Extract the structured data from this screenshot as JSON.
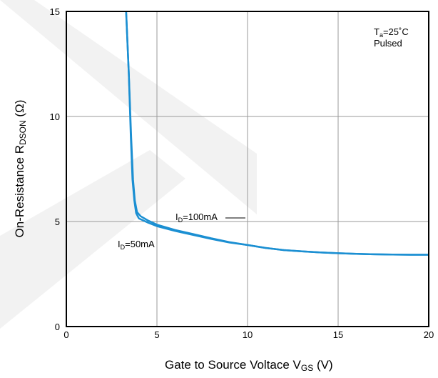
{
  "chart_data": {
    "type": "line",
    "xlim": [
      0,
      20
    ],
    "ylim": [
      0,
      15
    ],
    "x_ticks": [
      "0",
      "5",
      "10",
      "15",
      "20"
    ],
    "y_ticks": [
      "0",
      "5",
      "10",
      "15"
    ],
    "grid": true,
    "xlabel": {
      "main": "Gate  to  Source Voltace  V",
      "sub": "GS",
      "unit": " (V)"
    },
    "ylabel": {
      "main": "On-Resistance R",
      "sub": "DSON",
      "unit": " (Ω)"
    },
    "condition": {
      "ta_main": "T",
      "ta_sub": "a",
      "ta_value": "=25˚C",
      "pulsed": "Pulsed"
    },
    "series": [
      {
        "name": "ID=100mA",
        "label_main": "I",
        "label_sub": "D",
        "label_value": "=100mA",
        "points": [
          [
            3.3,
            15.0
          ],
          [
            3.45,
            12.0
          ],
          [
            3.58,
            9.0
          ],
          [
            3.68,
            7.0
          ],
          [
            3.78,
            6.0
          ],
          [
            3.9,
            5.45
          ],
          [
            4.1,
            5.25
          ],
          [
            4.5,
            5.05
          ],
          [
            5.0,
            4.85
          ],
          [
            6.0,
            4.6
          ],
          [
            7.0,
            4.4
          ],
          [
            8.0,
            4.2
          ],
          [
            9.0,
            4.02
          ],
          [
            10.0,
            3.88
          ],
          [
            11.0,
            3.74
          ],
          [
            12.0,
            3.64
          ],
          [
            13.0,
            3.58
          ],
          [
            14.0,
            3.53
          ],
          [
            15.0,
            3.49
          ],
          [
            16.0,
            3.46
          ],
          [
            17.0,
            3.44
          ],
          [
            18.0,
            3.43
          ],
          [
            19.0,
            3.42
          ],
          [
            20.0,
            3.42
          ]
        ]
      },
      {
        "name": "ID=50mA",
        "label_main": "I",
        "label_sub": "D",
        "label_value": "=50mA",
        "points": [
          [
            3.3,
            15.0
          ],
          [
            3.45,
            12.0
          ],
          [
            3.56,
            9.0
          ],
          [
            3.65,
            7.0
          ],
          [
            3.75,
            6.0
          ],
          [
            3.85,
            5.4
          ],
          [
            4.0,
            5.15
          ],
          [
            4.5,
            4.95
          ],
          [
            5.0,
            4.78
          ],
          [
            6.0,
            4.55
          ],
          [
            7.0,
            4.36
          ],
          [
            8.0,
            4.17
          ],
          [
            9.0,
            4.0
          ],
          [
            10.0,
            3.88
          ],
          [
            11.0,
            3.74
          ],
          [
            12.0,
            3.64
          ],
          [
            13.0,
            3.58
          ],
          [
            14.0,
            3.53
          ],
          [
            15.0,
            3.49
          ],
          [
            16.0,
            3.46
          ],
          [
            17.0,
            3.44
          ],
          [
            18.0,
            3.43
          ],
          [
            19.0,
            3.42
          ],
          [
            20.0,
            3.42
          ]
        ]
      }
    ],
    "colors": {
      "line": "#1b8fd2",
      "grid": "#9a9a9a",
      "frame": "#000000",
      "watermark": "#ececec"
    }
  }
}
